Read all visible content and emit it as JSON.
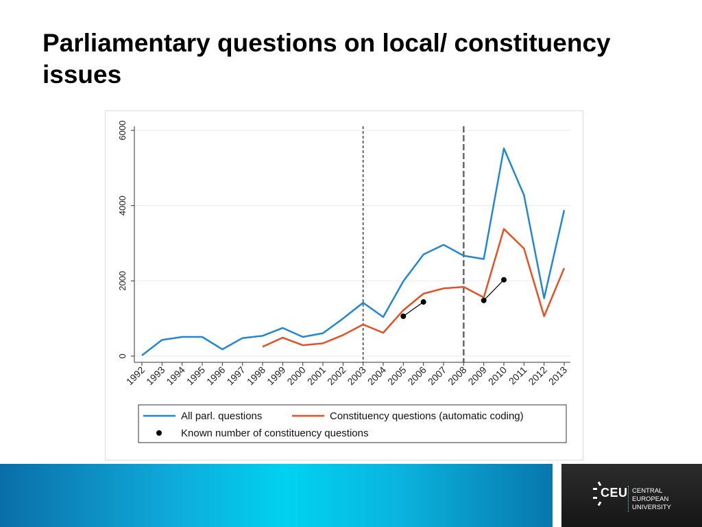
{
  "slide": {
    "title": "Parliamentary questions on local/ constituency issues"
  },
  "colors": {
    "all_questions": "#1f87d6",
    "constituency": "#e8501f",
    "known": "#000000"
  },
  "chart_data": {
    "type": "line",
    "title": "",
    "xlabel": "",
    "ylabel": "",
    "x": [
      "1992",
      "1993",
      "1994",
      "1995",
      "1996",
      "1997",
      "1998",
      "1999",
      "2000",
      "2001",
      "2002",
      "2003",
      "2004",
      "2005",
      "2006",
      "2007",
      "2008",
      "2009",
      "2010",
      "2011",
      "2012",
      "2013"
    ],
    "ylim": [
      0,
      6000
    ],
    "yticks": [
      "0",
      "2000",
      "4000",
      "6000"
    ],
    "grid": true,
    "vertical_lines": [
      "2003",
      "2008"
    ],
    "series": [
      {
        "name": "All parl. questions",
        "color": "#1f87d6",
        "values": [
          20,
          430,
          510,
          510,
          180,
          480,
          540,
          750,
          510,
          610,
          1000,
          1420,
          1040,
          1990,
          2700,
          2960,
          2670,
          2580,
          5520,
          4280,
          1540,
          3880
        ]
      },
      {
        "name": "Constituency questions (automatic coding)",
        "color": "#e8501f",
        "values": [
          null,
          null,
          null,
          null,
          null,
          null,
          250,
          490,
          290,
          340,
          560,
          840,
          620,
          1220,
          1660,
          1800,
          1840,
          1560,
          3380,
          2860,
          1060,
          2340
        ]
      },
      {
        "name": "Known number of constituency questions",
        "color": "#000000",
        "style": "points",
        "points": [
          {
            "x": "2005",
            "y": 1060
          },
          {
            "x": "2006",
            "y": 1440
          },
          {
            "x": "2009",
            "y": 1480
          },
          {
            "x": "2010",
            "y": 2030
          }
        ]
      }
    ],
    "legend": {
      "placement": "bottom",
      "entries": [
        "All parl. questions",
        "Constituency questions (automatic coding)",
        "Known number of constituency questions"
      ]
    }
  },
  "footer": {
    "logo_abbr": "CEU",
    "logo_lines": [
      "CENTRAL",
      "EUROPEAN",
      "UNIVERSITY"
    ],
    "band_color": "#00d2ef"
  }
}
